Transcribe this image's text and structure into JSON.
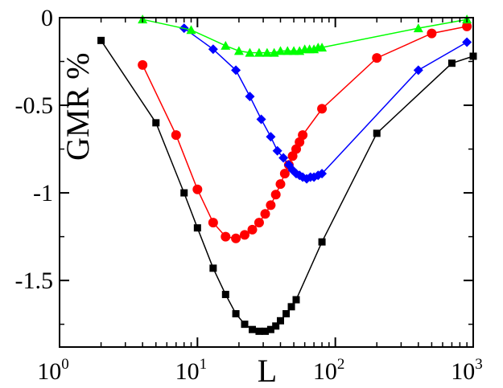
{
  "chart_data": {
    "type": "line",
    "title": "",
    "xlabel": "L",
    "ylabel": "GMR %",
    "xscale": "log",
    "xlim": [
      1,
      1000
    ],
    "ylim": [
      -1.88,
      0
    ],
    "grid": false,
    "legend": "none",
    "x_ticks": [
      {
        "base": "10",
        "exp": "0"
      },
      {
        "base": "10",
        "exp": "1"
      },
      {
        "base": "10",
        "exp": "2"
      },
      {
        "base": "10",
        "exp": "3"
      }
    ],
    "y_ticks": [
      {
        "value": 0,
        "label": "0"
      },
      {
        "value": -0.5,
        "label": "-0.5"
      },
      {
        "value": -1,
        "label": "-1"
      },
      {
        "value": -1.5,
        "label": "-1.5"
      }
    ],
    "series": [
      {
        "color": "#000000",
        "marker": "square",
        "points": [
          [
            2,
            -0.13
          ],
          [
            5,
            -0.6
          ],
          [
            8,
            -1.0
          ],
          [
            10,
            -1.2
          ],
          [
            13,
            -1.43
          ],
          [
            16,
            -1.58
          ],
          [
            19,
            -1.69
          ],
          [
            22,
            -1.75
          ],
          [
            25,
            -1.78
          ],
          [
            28,
            -1.79
          ],
          [
            31,
            -1.79
          ],
          [
            34,
            -1.78
          ],
          [
            37,
            -1.76
          ],
          [
            40,
            -1.73
          ],
          [
            44,
            -1.69
          ],
          [
            48,
            -1.65
          ],
          [
            52,
            -1.61
          ],
          [
            80,
            -1.28
          ],
          [
            200,
            -0.66
          ],
          [
            700,
            -0.26
          ],
          [
            1000,
            -0.22
          ]
        ]
      },
      {
        "color": "#ff0000",
        "marker": "circle",
        "points": [
          [
            4,
            -0.27
          ],
          [
            7,
            -0.67
          ],
          [
            10,
            -0.98
          ],
          [
            13,
            -1.17
          ],
          [
            16,
            -1.25
          ],
          [
            19,
            -1.26
          ],
          [
            22,
            -1.24
          ],
          [
            25,
            -1.21
          ],
          [
            28,
            -1.17
          ],
          [
            31,
            -1.12
          ],
          [
            34,
            -1.07
          ],
          [
            37,
            -1.01
          ],
          [
            40,
            -0.95
          ],
          [
            43,
            -0.89
          ],
          [
            46,
            -0.84
          ],
          [
            49,
            -0.79
          ],
          [
            52,
            -0.75
          ],
          [
            55,
            -0.71
          ],
          [
            58,
            -0.67
          ],
          [
            80,
            -0.52
          ],
          [
            200,
            -0.23
          ],
          [
            500,
            -0.09
          ],
          [
            900,
            -0.05
          ]
        ]
      },
      {
        "color": "#0000ff",
        "marker": "diamond",
        "points": [
          [
            8,
            -0.06
          ],
          [
            13,
            -0.18
          ],
          [
            19,
            -0.3
          ],
          [
            24,
            -0.45
          ],
          [
            29,
            -0.58
          ],
          [
            34,
            -0.68
          ],
          [
            38,
            -0.76
          ],
          [
            42,
            -0.8
          ],
          [
            46,
            -0.84
          ],
          [
            49,
            -0.87
          ],
          [
            52,
            -0.89
          ],
          [
            55,
            -0.9
          ],
          [
            58,
            -0.91
          ],
          [
            62,
            -0.92
          ],
          [
            66,
            -0.91
          ],
          [
            70,
            -0.91
          ],
          [
            75,
            -0.9
          ],
          [
            80,
            -0.89
          ],
          [
            400,
            -0.3
          ],
          [
            900,
            -0.14
          ]
        ]
      },
      {
        "color": "#00ff00",
        "marker": "triangle",
        "points": [
          [
            4,
            -0.01
          ],
          [
            9,
            -0.07
          ],
          [
            16,
            -0.16
          ],
          [
            20,
            -0.19
          ],
          [
            24,
            -0.2
          ],
          [
            28,
            -0.2
          ],
          [
            32,
            -0.2
          ],
          [
            36,
            -0.2
          ],
          [
            40,
            -0.19
          ],
          [
            45,
            -0.19
          ],
          [
            50,
            -0.19
          ],
          [
            55,
            -0.19
          ],
          [
            60,
            -0.18
          ],
          [
            65,
            -0.18
          ],
          [
            70,
            -0.18
          ],
          [
            75,
            -0.17
          ],
          [
            80,
            -0.17
          ],
          [
            400,
            -0.06
          ],
          [
            900,
            -0.01
          ]
        ]
      }
    ]
  }
}
